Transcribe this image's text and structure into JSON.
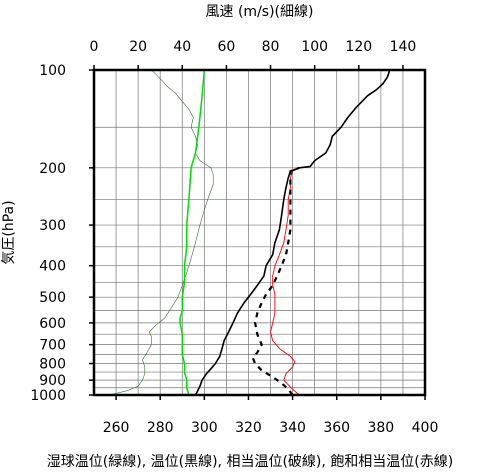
{
  "chart_data": {
    "type": "line",
    "title": "",
    "top_axis": {
      "label": "風速 (m/s)(細線)",
      "ticks": [
        0,
        20,
        40,
        60,
        80,
        100,
        120,
        140
      ],
      "range": [
        0,
        150
      ]
    },
    "bottom_axis": {
      "label": "湿球温位(緑線), 温位(黒線), 相当温位(破線), 飽和相当温位(赤線)",
      "ticks": [
        260,
        280,
        300,
        320,
        340,
        360,
        380,
        400
      ],
      "range": [
        250,
        400
      ]
    },
    "y_axis": {
      "label": "気圧(hPa)",
      "scale": "log",
      "inverted": true,
      "ticks": [
        100,
        200,
        300,
        400,
        500,
        600,
        700,
        800,
        900,
        1000
      ],
      "range": [
        100,
        1000
      ]
    },
    "grid": true,
    "colors": {
      "wetbulb": "#00dd00",
      "theta": "#000000",
      "thetae": "#000000",
      "thetaes": "#ff0000",
      "wind": "#3a6b3a"
    },
    "series": [
      {
        "name": "湿球温位",
        "axis": "bottom",
        "style": "solid-green",
        "points": [
          [
            293,
            1000
          ],
          [
            292,
            950
          ],
          [
            292,
            900
          ],
          [
            291,
            850
          ],
          [
            291,
            800
          ],
          [
            290,
            750
          ],
          [
            290,
            700
          ],
          [
            290,
            650
          ],
          [
            289,
            600
          ],
          [
            289,
            580
          ],
          [
            290,
            550
          ],
          [
            290,
            500
          ],
          [
            291,
            450
          ],
          [
            291,
            400
          ],
          [
            292,
            350
          ],
          [
            292,
            300
          ],
          [
            293,
            250
          ],
          [
            294,
            200
          ],
          [
            296,
            180
          ],
          [
            297,
            160
          ],
          [
            298,
            140
          ],
          [
            299,
            120
          ],
          [
            300,
            100
          ]
        ]
      },
      {
        "name": "温位",
        "axis": "bottom",
        "style": "solid-black",
        "points": [
          [
            296,
            1000
          ],
          [
            297,
            970
          ],
          [
            298,
            940
          ],
          [
            299,
            900
          ],
          [
            301,
            860
          ],
          [
            303,
            830
          ],
          [
            305,
            800
          ],
          [
            307,
            760
          ],
          [
            308,
            720
          ],
          [
            309,
            680
          ],
          [
            311,
            640
          ],
          [
            313,
            600
          ],
          [
            315,
            560
          ],
          [
            318,
            520
          ],
          [
            321,
            490
          ],
          [
            324,
            460
          ],
          [
            327,
            430
          ],
          [
            328,
            400
          ],
          [
            331,
            370
          ],
          [
            332,
            340
          ],
          [
            334,
            310
          ],
          [
            335,
            280
          ],
          [
            336,
            250
          ],
          [
            337,
            230
          ],
          [
            338,
            215
          ],
          [
            339,
            205
          ],
          [
            343,
            200
          ],
          [
            348,
            198
          ],
          [
            350,
            190
          ],
          [
            355,
            180
          ],
          [
            357,
            170
          ],
          [
            358,
            160
          ],
          [
            362,
            150
          ],
          [
            365,
            140
          ],
          [
            369,
            130
          ],
          [
            374,
            120
          ],
          [
            378,
            115
          ],
          [
            381,
            110
          ],
          [
            383,
            105
          ],
          [
            384,
            100
          ]
        ]
      },
      {
        "name": "相当温位",
        "axis": "bottom",
        "style": "dashed-black",
        "points": [
          [
            340,
            1000
          ],
          [
            338,
            960
          ],
          [
            335,
            920
          ],
          [
            331,
            880
          ],
          [
            326,
            840
          ],
          [
            323,
            800
          ],
          [
            322,
            770
          ],
          [
            324,
            740
          ],
          [
            326,
            700
          ],
          [
            324,
            650
          ],
          [
            323,
            600
          ],
          [
            324,
            560
          ],
          [
            326,
            520
          ],
          [
            328,
            490
          ],
          [
            331,
            460
          ],
          [
            333,
            430
          ],
          [
            335,
            400
          ],
          [
            337,
            370
          ],
          [
            338,
            340
          ],
          [
            339,
            310
          ],
          [
            339,
            280
          ],
          [
            339,
            250
          ],
          [
            339,
            230
          ],
          [
            339,
            215
          ],
          [
            339,
            205
          ],
          [
            343,
            200
          ]
        ]
      },
      {
        "name": "飽和相当温位",
        "axis": "bottom",
        "style": "solid-red",
        "points": [
          [
            343,
            1000
          ],
          [
            340,
            960
          ],
          [
            338,
            930
          ],
          [
            336,
            900
          ],
          [
            337,
            860
          ],
          [
            340,
            820
          ],
          [
            341,
            790
          ],
          [
            339,
            760
          ],
          [
            334,
            720
          ],
          [
            331,
            680
          ],
          [
            330,
            640
          ],
          [
            331,
            600
          ],
          [
            332,
            560
          ],
          [
            332,
            520
          ],
          [
            332,
            490
          ],
          [
            331,
            460
          ],
          [
            331,
            430
          ],
          [
            332,
            400
          ],
          [
            334,
            370
          ],
          [
            336,
            340
          ],
          [
            337,
            310
          ],
          [
            338,
            280
          ],
          [
            338,
            250
          ],
          [
            339,
            230
          ],
          [
            339,
            215
          ],
          [
            340,
            205
          ],
          [
            343,
            200
          ],
          [
            348,
            198
          ],
          [
            350,
            190
          ],
          [
            355,
            180
          ],
          [
            357,
            170
          ],
          [
            358,
            160
          ],
          [
            362,
            150
          ],
          [
            365,
            140
          ],
          [
            369,
            130
          ],
          [
            374,
            120
          ],
          [
            378,
            115
          ],
          [
            381,
            110
          ],
          [
            383,
            105
          ],
          [
            384,
            100
          ]
        ]
      },
      {
        "name": "風速",
        "axis": "top",
        "style": "thin-green",
        "points": [
          [
            7,
            1000
          ],
          [
            15,
            970
          ],
          [
            20,
            940
          ],
          [
            22,
            900
          ],
          [
            23,
            860
          ],
          [
            23,
            820
          ],
          [
            22,
            780
          ],
          [
            24,
            740
          ],
          [
            26,
            700
          ],
          [
            26,
            660
          ],
          [
            25,
            640
          ],
          [
            28,
            610
          ],
          [
            32,
            580
          ],
          [
            35,
            540
          ],
          [
            38,
            500
          ],
          [
            40,
            460
          ],
          [
            42,
            420
          ],
          [
            44,
            380
          ],
          [
            46,
            340
          ],
          [
            48,
            300
          ],
          [
            50,
            270
          ],
          [
            52,
            245
          ],
          [
            54,
            225
          ],
          [
            54,
            210
          ],
          [
            53,
            200
          ],
          [
            48,
            190
          ],
          [
            46,
            180
          ],
          [
            47,
            170
          ],
          [
            46,
            160
          ],
          [
            44,
            150
          ],
          [
            45,
            140
          ],
          [
            43,
            132
          ],
          [
            40,
            125
          ],
          [
            37,
            118
          ],
          [
            33,
            112
          ],
          [
            31,
            108
          ],
          [
            28,
            103
          ],
          [
            26,
            100
          ]
        ]
      }
    ]
  }
}
